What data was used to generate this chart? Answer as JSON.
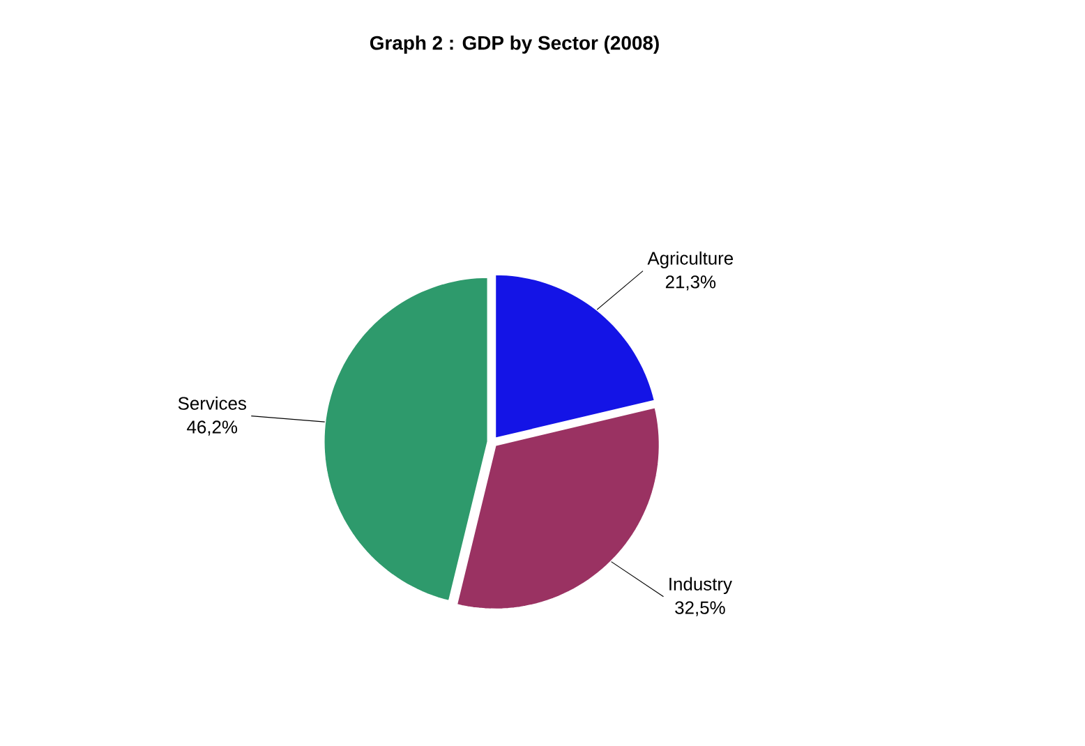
{
  "chart_data": {
    "type": "pie",
    "title": "Graph 2 : GDP by Sector (2008)",
    "categories": [
      "Agriculture",
      "Industry",
      "Services"
    ],
    "values": [
      21.3,
      32.5,
      46.2
    ],
    "value_labels": [
      "21,3%",
      "32,5%",
      "46,2%"
    ],
    "colors": [
      "#1414e6",
      "#9a3262",
      "#2e9a6c"
    ]
  }
}
